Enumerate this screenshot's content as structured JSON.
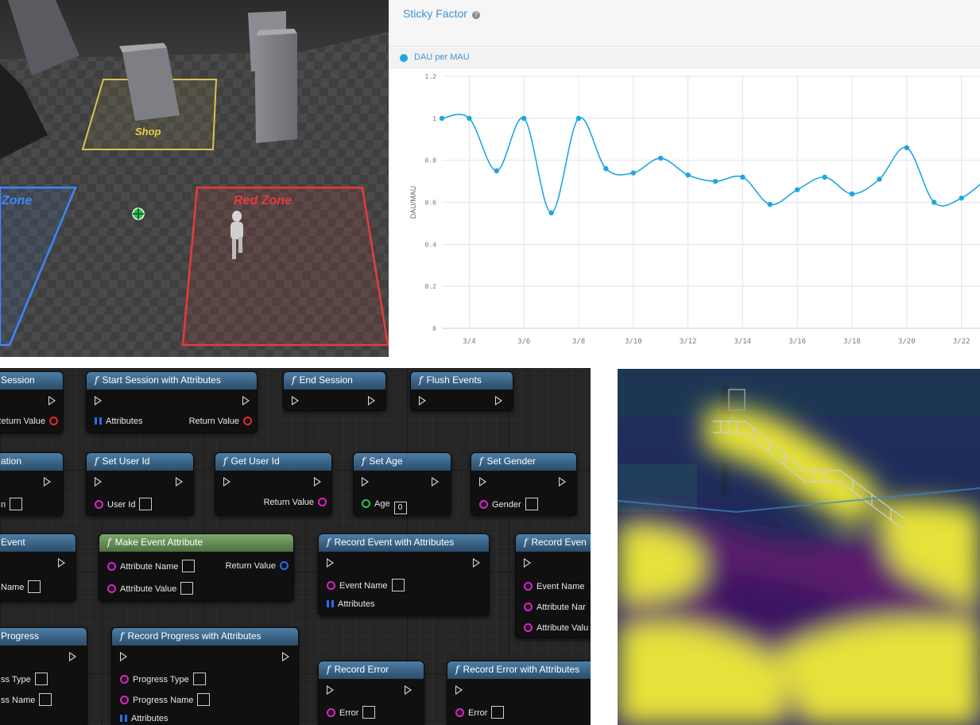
{
  "scene": {
    "zones": {
      "shop": "Shop",
      "red": "Red Zone",
      "blue": "Zone"
    },
    "colors": {
      "shop": "#d9c44a",
      "red": "#e83a3a",
      "blue": "#3d86ff"
    }
  },
  "chart_panel": {
    "title": "Sticky Factor",
    "legend_label": "DAU per MAU",
    "accent": "#1ea6e0"
  },
  "chart_data": {
    "type": "line",
    "ylabel": "DAU/MAU",
    "xlabel": "",
    "ylim": [
      0,
      1.2
    ],
    "y_ticks": [
      "0",
      "0.2",
      "0.4",
      "0.6",
      "0.8",
      "1",
      "1.2"
    ],
    "x_tick_labels": [
      "3/4",
      "3/6",
      "3/8",
      "3/10",
      "3/12",
      "3/14",
      "3/16",
      "3/18",
      "3/20",
      "3/22"
    ],
    "grid": true,
    "series": [
      {
        "name": "DAU per MAU",
        "x": [
          "3/3",
          "3/4",
          "3/5",
          "3/6",
          "3/7",
          "3/8",
          "3/9",
          "3/10",
          "3/11",
          "3/12",
          "3/13",
          "3/14",
          "3/15",
          "3/16",
          "3/17",
          "3/18",
          "3/19",
          "3/20",
          "3/21",
          "3/22",
          "3/23"
        ],
        "values": [
          1.0,
          1.0,
          0.75,
          1.0,
          0.55,
          1.0,
          0.76,
          0.74,
          0.81,
          0.73,
          0.7,
          0.72,
          0.59,
          0.66,
          0.72,
          0.64,
          0.71,
          0.86,
          0.6,
          0.62,
          0.72
        ]
      }
    ]
  },
  "blueprint": {
    "nodes": [
      {
        "key": "n1",
        "title": "Session",
        "rows": {
          "ret": "Return Value"
        }
      },
      {
        "key": "n2",
        "title": "Start Session with Attributes",
        "rows": {
          "attr": "Attributes",
          "ret": "Return Value"
        }
      },
      {
        "key": "n3",
        "title": "End Session"
      },
      {
        "key": "n4",
        "title": "Flush Events"
      },
      {
        "key": "n5",
        "title": "ation",
        "rows": {
          "in": "n"
        }
      },
      {
        "key": "n6",
        "title": "Set User Id",
        "rows": {
          "in": "User Id"
        }
      },
      {
        "key": "n7",
        "title": "Get User Id",
        "rows": {
          "ret": "Return Value"
        }
      },
      {
        "key": "n8",
        "title": "Set Age",
        "rows": {
          "in": "Age",
          "val": "0"
        }
      },
      {
        "key": "n9",
        "title": "Set Gender",
        "rows": {
          "in": "Gender"
        }
      },
      {
        "key": "n10",
        "title": "Event",
        "rows": {
          "in": "Name"
        }
      },
      {
        "key": "n11",
        "title": "Make Event Attribute",
        "rows": {
          "a": "Attribute Name",
          "b": "Attribute Value",
          "ret": "Return Value"
        }
      },
      {
        "key": "n12",
        "title": "Record Event with Attributes",
        "rows": {
          "a": "Event Name",
          "b": "Attributes"
        }
      },
      {
        "key": "n13",
        "title": "Record Even",
        "rows": {
          "a": "Event Name",
          "b": "Attribute Nar",
          "c": "Attribute Valu"
        }
      },
      {
        "key": "n14",
        "title": "Progress",
        "rows": {
          "a": "ss Type",
          "b": "ss Name"
        }
      },
      {
        "key": "n15",
        "title": "Record Progress with Attributes",
        "rows": {
          "a": "Progress Type",
          "b": "Progress Name",
          "c": "Attributes"
        }
      },
      {
        "key": "n16",
        "title": "Record Error",
        "rows": {
          "a": "Error"
        }
      },
      {
        "key": "n17",
        "title": "Record Error with Attributes",
        "rows": {
          "a": "Error"
        }
      }
    ]
  },
  "heatmap": {
    "colors": {
      "hot": "#e6e23a",
      "mid": "#7a1e7a",
      "cold": "#252a66"
    }
  }
}
